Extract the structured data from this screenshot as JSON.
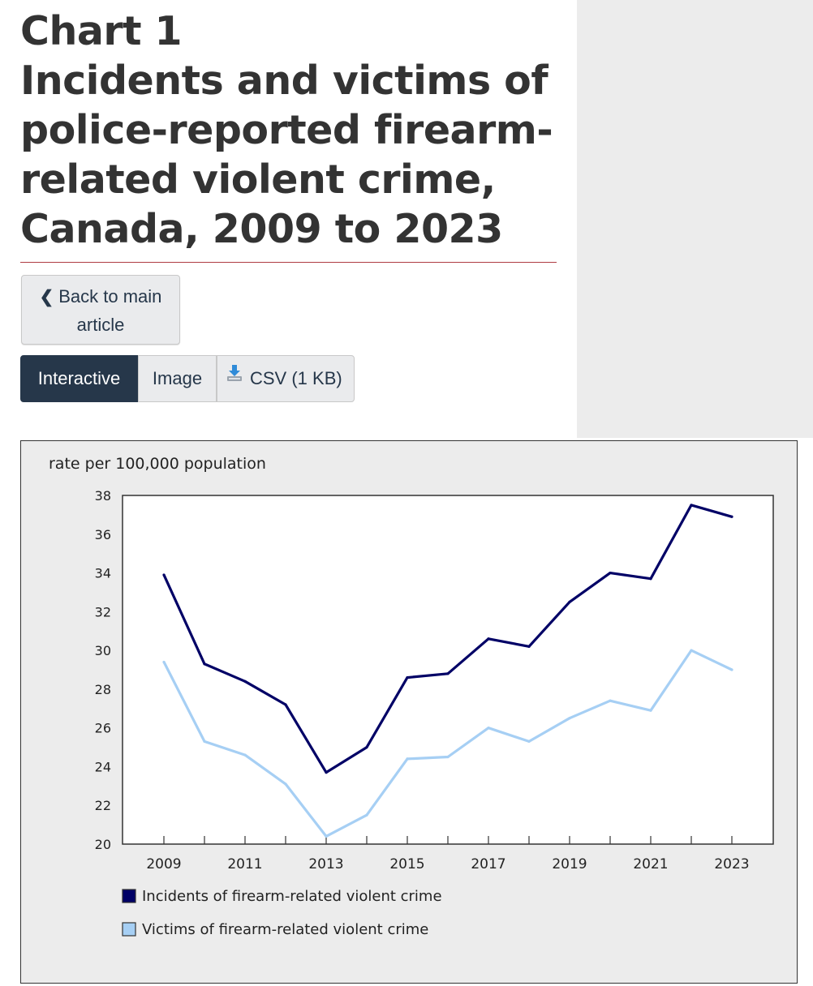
{
  "title": {
    "line1": "Chart 1",
    "line2": "Incidents and victims of",
    "line3": "police-reported firearm-",
    "line4": "related violent crime,",
    "line5": "Canada, 2009 to 2023"
  },
  "nav": {
    "back_chevron": "❮",
    "back_line1": "Back to main",
    "back_line2": "article",
    "tab_interactive": "Interactive",
    "tab_image": "Image",
    "tab_csv": "CSV (1 KB)",
    "download_icon": "download-icon"
  },
  "colors": {
    "incidents": "#000066",
    "victims": "#a6cff4",
    "accent_rule": "#af3c43",
    "button_dark": "#26374a"
  },
  "chart_data": {
    "type": "line",
    "ylabel": "rate per 100,000 population",
    "ylim": [
      20,
      38
    ],
    "yticks": [
      20,
      22,
      24,
      26,
      28,
      30,
      32,
      34,
      36,
      38
    ],
    "x": [
      2009,
      2010,
      2011,
      2012,
      2013,
      2014,
      2015,
      2016,
      2017,
      2018,
      2019,
      2020,
      2021,
      2022,
      2023
    ],
    "xtick_labels": [
      2009,
      2011,
      2013,
      2015,
      2017,
      2019,
      2021,
      2023
    ],
    "grid": false,
    "legend_position": "bottom",
    "series": [
      {
        "name": "Incidents of firearm-related violent crime",
        "color": "#000066",
        "values": [
          33.9,
          29.3,
          28.4,
          27.2,
          23.7,
          25.0,
          28.6,
          28.8,
          30.6,
          30.2,
          32.5,
          34.0,
          33.7,
          37.5,
          36.9
        ]
      },
      {
        "name": "Victims of firearm-related violent crime",
        "color": "#a6cff4",
        "values": [
          29.4,
          25.3,
          24.6,
          23.1,
          20.4,
          21.5,
          24.4,
          24.5,
          26.0,
          25.3,
          26.5,
          27.4,
          26.9,
          30.0,
          29.0
        ]
      }
    ]
  }
}
